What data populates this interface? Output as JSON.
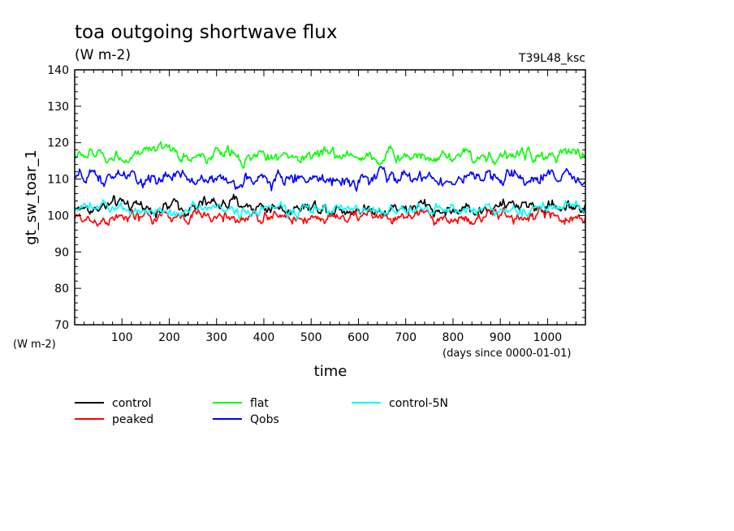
{
  "chart_data": {
    "type": "line",
    "title": "toa outgoing shortwave flux",
    "subtitle": "(W m-2)",
    "run_label": "T39L48_ksc",
    "ylabel": "gt_sw_toar_1",
    "y_units": "(W m-2)",
    "xlabel": "time",
    "x_units": "(days since 0000-01-01)",
    "xlim": [
      0,
      1080
    ],
    "ylim": [
      70,
      140
    ],
    "x_ticks": [
      100,
      200,
      300,
      400,
      500,
      600,
      700,
      800,
      900,
      1000
    ],
    "y_ticks": [
      70,
      80,
      90,
      100,
      110,
      120,
      130,
      140
    ],
    "legend_position": "bottom",
    "grid": false,
    "series": [
      {
        "name": "control",
        "color": "#000000",
        "mean": 102.5,
        "noise": 1.4,
        "x": [
          0,
          100,
          200,
          300,
          400,
          500,
          600,
          700,
          800,
          900,
          1000,
          1080
        ],
        "values": [
          102,
          102.5,
          102.5,
          103,
          102.5,
          102.5,
          102,
          102.5,
          101.5,
          102.5,
          102.5,
          102.5
        ]
      },
      {
        "name": "peaked",
        "color": "#ff0000",
        "mean": 99.5,
        "noise": 1.3,
        "x": [
          0,
          100,
          200,
          300,
          400,
          500,
          600,
          700,
          800,
          900,
          1000,
          1080
        ],
        "values": [
          99,
          99.5,
          99.5,
          99.5,
          99.5,
          99.5,
          99.5,
          99.5,
          99,
          99.5,
          99.5,
          99.5
        ]
      },
      {
        "name": "flat",
        "color": "#00ff00",
        "mean": 116.5,
        "noise": 1.3,
        "x": [
          0,
          100,
          200,
          300,
          400,
          500,
          600,
          700,
          800,
          900,
          1000,
          1080
        ],
        "values": [
          116.5,
          116.5,
          116.5,
          116.5,
          116,
          116.5,
          116.5,
          116,
          116.5,
          116.5,
          116.5,
          116.5
        ]
      },
      {
        "name": "Qobs",
        "color": "#0000ff",
        "mean": 110,
        "noise": 1.5,
        "x": [
          0,
          100,
          200,
          300,
          400,
          500,
          600,
          700,
          800,
          900,
          1000,
          1080
        ],
        "values": [
          110,
          110,
          110,
          110,
          110,
          110,
          110,
          110.5,
          110,
          110,
          110,
          110
        ]
      },
      {
        "name": "control-5N",
        "color": "#00ffff",
        "mean": 101.5,
        "noise": 1.2,
        "x": [
          0,
          100,
          200,
          300,
          400,
          500,
          600,
          700,
          800,
          900,
          1000,
          1080
        ],
        "values": [
          102,
          101.5,
          101.5,
          101.5,
          101.5,
          101.5,
          101.5,
          101.5,
          101.5,
          102,
          102,
          102.5
        ]
      }
    ]
  }
}
